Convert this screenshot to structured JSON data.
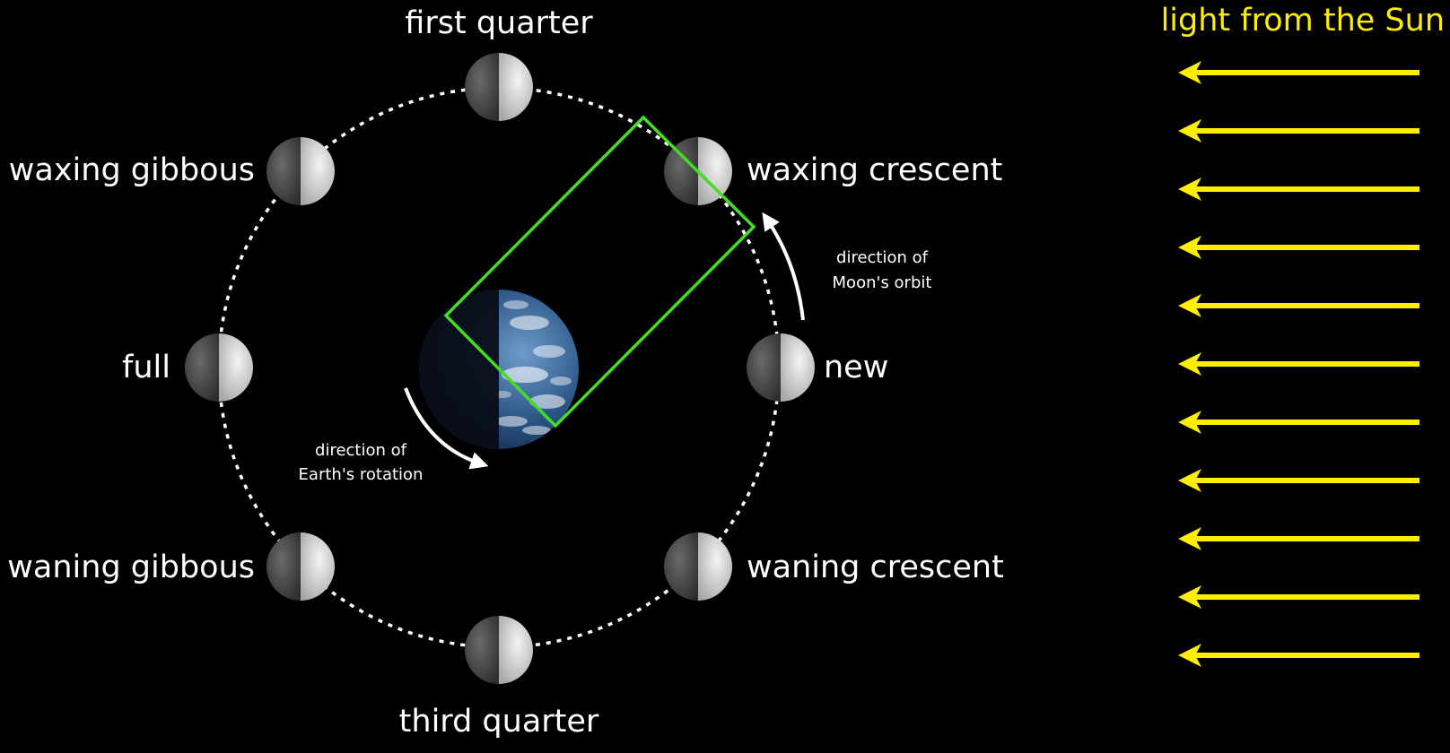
{
  "phases": {
    "first_quarter": "first quarter",
    "waxing_gibbous": "waxing gibbous",
    "waxing_crescent": "waxing crescent",
    "full": "full",
    "new": "new",
    "waning_gibbous": "waning gibbous",
    "waning_crescent": "waning crescent",
    "third_quarter": "third quarter"
  },
  "annotations": {
    "moon_orbit_line1": "direction of",
    "moon_orbit_line2": "Moon's orbit",
    "earth_rotation_line1": "direction of",
    "earth_rotation_line2": "Earth's rotation"
  },
  "sunlight": {
    "label": "light from the Sun",
    "arrow_count": 11
  },
  "colors": {
    "background": "#000000",
    "sun_light": "#ffee00",
    "highlight_box": "#44dd22",
    "orbit": "#ffffff",
    "moon_dark": "#4a4a4a",
    "moon_lit": "#e6e6e6"
  }
}
